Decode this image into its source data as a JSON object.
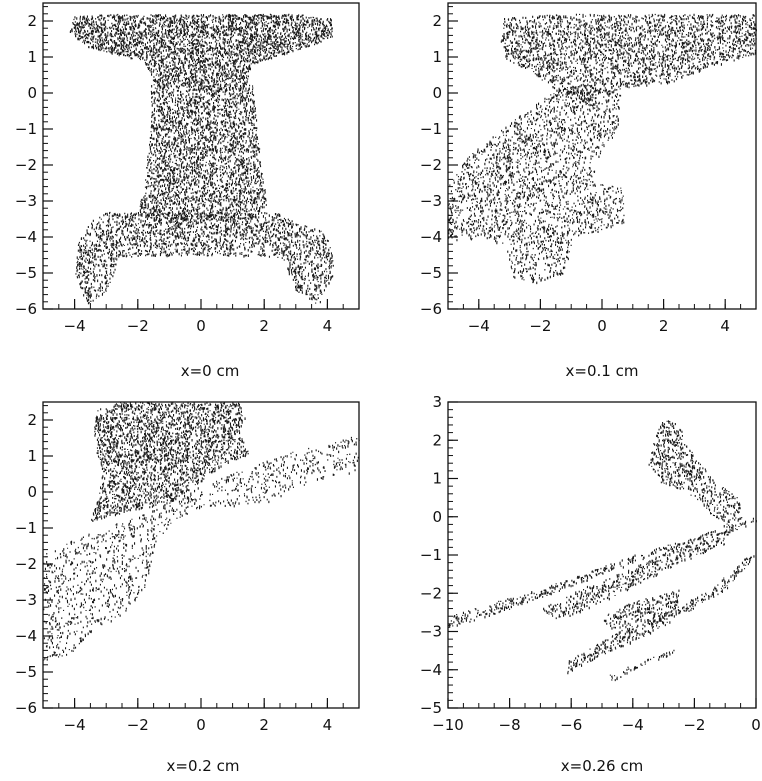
{
  "chart_data": [
    {
      "type": "scatter",
      "caption": "x=0 cm",
      "xlim": [
        -5,
        5
      ],
      "ylim": [
        -6,
        2.5
      ],
      "xticks": [
        -4,
        -2,
        0,
        2,
        4
      ],
      "yticks": [
        -6,
        -5,
        -4,
        -3,
        -2,
        -1,
        0,
        1,
        2
      ],
      "xtick_labels": [
        "−4",
        "−2",
        "0",
        "2",
        "4"
      ],
      "ytick_labels": [
        "−6",
        "−5",
        "−4",
        "−3",
        "−2",
        "−1",
        "0",
        "1",
        "2"
      ],
      "grid": false,
      "point_density": 2.6,
      "regions": [
        [
          [
            -4.2,
            1.75
          ],
          [
            -4.0,
            2.15
          ],
          [
            -3.0,
            2.2
          ],
          [
            0,
            2.2
          ],
          [
            3.0,
            2.2
          ],
          [
            4.1,
            2.1
          ],
          [
            4.2,
            1.6
          ],
          [
            3.4,
            1.3
          ],
          [
            2.4,
            1.05
          ],
          [
            1.6,
            0.8
          ],
          [
            1.5,
            0.3
          ],
          [
            -1.5,
            0.3
          ],
          [
            -1.8,
            0.9
          ],
          [
            -2.8,
            1.1
          ],
          [
            -3.6,
            1.3
          ]
        ],
        [
          [
            -1.6,
            0.3
          ],
          [
            1.6,
            0.3
          ],
          [
            1.8,
            -1.0
          ],
          [
            1.9,
            -2.0
          ],
          [
            2.1,
            -3.1
          ],
          [
            1.8,
            -3.3
          ],
          [
            1.5,
            -3.5
          ],
          [
            -1.5,
            -3.5
          ],
          [
            -2.0,
            -3.3
          ],
          [
            -1.8,
            -2.5
          ],
          [
            -1.6,
            -1.0
          ]
        ],
        [
          [
            -2.4,
            -3.3
          ],
          [
            2.4,
            -3.3
          ],
          [
            3.0,
            -3.6
          ],
          [
            3.8,
            -3.8
          ],
          [
            4.1,
            -4.2
          ],
          [
            4.2,
            -5.0
          ],
          [
            3.7,
            -5.9
          ],
          [
            3.0,
            -5.5
          ],
          [
            2.6,
            -4.6
          ],
          [
            2.0,
            -4.5
          ],
          [
            0,
            -4.5
          ],
          [
            -2.0,
            -4.5
          ],
          [
            -2.6,
            -4.6
          ],
          [
            -3.0,
            -5.5
          ],
          [
            -3.6,
            -5.9
          ],
          [
            -4.0,
            -5.0
          ],
          [
            -3.9,
            -4.2
          ],
          [
            -3.6,
            -3.6
          ],
          [
            -3.0,
            -3.3
          ]
        ]
      ]
    },
    {
      "type": "scatter",
      "caption": "x=0.1 cm",
      "xlim": [
        -5,
        5
      ],
      "ylim": [
        -6,
        2.5
      ],
      "xticks": [
        -4,
        -2,
        0,
        2,
        4
      ],
      "yticks": [
        -6,
        -5,
        -4,
        -3,
        -2,
        -1,
        0,
        1,
        2
      ],
      "xtick_labels": [
        "−4",
        "−2",
        "0",
        "2",
        "4"
      ],
      "ytick_labels": [
        "−6",
        "−5",
        "−4",
        "−3",
        "−2",
        "−1",
        "0",
        "1",
        "2"
      ],
      "grid": false,
      "point_density": 2.4,
      "regions": [
        [
          [
            -3.3,
            1.5
          ],
          [
            -3.2,
            2.1
          ],
          [
            -1.5,
            2.2
          ],
          [
            1.5,
            2.2
          ],
          [
            3.2,
            2.2
          ],
          [
            5.0,
            2.2
          ],
          [
            5.0,
            1.1
          ],
          [
            3.8,
            0.8
          ],
          [
            2.2,
            0.3
          ],
          [
            1.0,
            0.2
          ],
          [
            0,
            0.0
          ],
          [
            -0.5,
            -0.3
          ],
          [
            -1.5,
            0.1
          ],
          [
            -2.5,
            0.7
          ],
          [
            -3.1,
            0.9
          ]
        ],
        [
          [
            -5.0,
            -2.5
          ],
          [
            -4.3,
            -1.7
          ],
          [
            -3.4,
            -1.1
          ],
          [
            -2.5,
            -0.5
          ],
          [
            -1.5,
            0.1
          ],
          [
            -0.5,
            0.3
          ],
          [
            0.6,
            0.0
          ],
          [
            0.5,
            -1.0
          ],
          [
            -0.2,
            -1.9
          ],
          [
            -0.3,
            -2.5
          ],
          [
            0.7,
            -2.6
          ],
          [
            0.7,
            -3.6
          ],
          [
            0,
            -3.8
          ],
          [
            -0.9,
            -4.0
          ],
          [
            -1.2,
            -5.0
          ],
          [
            -2.2,
            -5.3
          ],
          [
            -2.9,
            -5.1
          ],
          [
            -3.1,
            -4.3
          ],
          [
            -3.8,
            -4.0
          ],
          [
            -5.0,
            -4.1
          ]
        ]
      ]
    },
    {
      "type": "scatter",
      "caption": "x=0.2 cm",
      "xlim": [
        -5,
        5
      ],
      "ylim": [
        -6,
        2.5
      ],
      "xticks": [
        -4,
        -2,
        0,
        2,
        4
      ],
      "yticks": [
        -6,
        -5,
        -4,
        -3,
        -2,
        -1,
        0,
        1,
        2
      ],
      "xtick_labels": [
        "−4",
        "−2",
        "0",
        "2",
        "4"
      ],
      "ytick_labels": [
        "−6",
        "−5",
        "−4",
        "−3",
        "−2",
        "−1",
        "0",
        "1",
        "2"
      ],
      "grid": false,
      "point_density": 2.3,
      "regions": [
        [
          [
            -3.4,
            1.7
          ],
          [
            -3.3,
            2.3
          ],
          [
            -2.6,
            2.5
          ],
          [
            1.2,
            2.5
          ],
          [
            1.4,
            2.1
          ],
          [
            1.2,
            1.6
          ],
          [
            1.6,
            1.1
          ],
          [
            0.8,
            0.8
          ],
          [
            -0.2,
            0.2
          ],
          [
            -1.0,
            -0.3
          ],
          [
            -2.2,
            -0.5
          ],
          [
            -3.5,
            -0.8
          ],
          [
            -3.3,
            -0.2
          ],
          [
            -3.1,
            0.6
          ],
          [
            -3.3,
            1.0
          ]
        ],
        [
          [
            -5.0,
            -1.7
          ],
          [
            -4.0,
            -1.3
          ],
          [
            -2.8,
            -0.9
          ],
          [
            -1.6,
            -0.5
          ],
          [
            -0.2,
            0.1
          ],
          [
            1.2,
            0.6
          ],
          [
            2.8,
            1.1
          ],
          [
            5.0,
            1.6
          ],
          [
            5.0,
            0.6
          ],
          [
            3.5,
            0.3
          ],
          [
            2.0,
            -0.3
          ],
          [
            1.0,
            -0.4
          ],
          [
            0,
            -0.4
          ],
          [
            -0.9,
            -0.8
          ],
          [
            -1.5,
            -1.5
          ],
          [
            -1.7,
            -2.5
          ],
          [
            -2.0,
            -3.0
          ],
          [
            -2.6,
            -3.5
          ],
          [
            -3.3,
            -3.7
          ],
          [
            -3.5,
            -4.1
          ],
          [
            -4.2,
            -4.5
          ],
          [
            -5.0,
            -4.7
          ]
        ]
      ]
    },
    {
      "type": "scatter",
      "caption": "x=0.26 cm",
      "xlim": [
        -10,
        0
      ],
      "ylim": [
        -5,
        3
      ],
      "xticks": [
        -10,
        -8,
        -6,
        -4,
        -2,
        0
      ],
      "yticks": [
        -5,
        -4,
        -3,
        -2,
        -1,
        0,
        1,
        2,
        3
      ],
      "xtick_labels": [
        "−10",
        "−8",
        "−6",
        "−4",
        "−2",
        "0"
      ],
      "ytick_labels": [
        "−5",
        "−4",
        "−3",
        "−2",
        "−1",
        "0",
        "1",
        "2",
        "3"
      ],
      "grid": false,
      "point_density": 1.5,
      "regions": [
        [
          [
            -3.3,
            2.1
          ],
          [
            -3.0,
            2.6
          ],
          [
            -2.5,
            2.4
          ],
          [
            -2.0,
            1.6
          ],
          [
            -1.4,
            1.0
          ],
          [
            -0.6,
            0.5
          ],
          [
            -0.4,
            0.0
          ],
          [
            -1.0,
            -0.3
          ],
          [
            -1.6,
            0.2
          ],
          [
            -2.3,
            0.7
          ],
          [
            -3.1,
            0.9
          ],
          [
            -3.5,
            1.4
          ]
        ],
        [
          [
            -10.0,
            -2.6
          ],
          [
            -8.0,
            -2.1
          ],
          [
            -6.0,
            -1.6
          ],
          [
            -4.0,
            -1.0
          ],
          [
            -2.0,
            -0.5
          ],
          [
            0,
            0.0
          ],
          [
            0,
            -0.2
          ],
          [
            -2.0,
            -0.6
          ],
          [
            -4.0,
            -1.2
          ],
          [
            -6.0,
            -1.8
          ],
          [
            -8.0,
            -2.4
          ],
          [
            -10.0,
            -2.9
          ]
        ],
        [
          [
            -7.0,
            -2.4
          ],
          [
            -5.5,
            -1.8
          ],
          [
            -4.0,
            -1.3
          ],
          [
            -2.2,
            -0.6
          ],
          [
            -0.8,
            -0.3
          ],
          [
            -1.0,
            -0.7
          ],
          [
            -2.5,
            -1.2
          ],
          [
            -4.2,
            -1.9
          ],
          [
            -5.5,
            -2.4
          ],
          [
            -6.4,
            -2.7
          ]
        ],
        [
          [
            -6.2,
            -3.8
          ],
          [
            -4.5,
            -3.0
          ],
          [
            -3.0,
            -2.5
          ],
          [
            -1.5,
            -1.9
          ],
          [
            -0.3,
            -1.0
          ],
          [
            0,
            -1.0
          ],
          [
            -1.0,
            -1.9
          ],
          [
            -2.5,
            -2.6
          ],
          [
            -3.6,
            -3.1
          ],
          [
            -5.0,
            -3.6
          ],
          [
            -6.2,
            -4.1
          ]
        ],
        [
          [
            -5.0,
            -2.6
          ],
          [
            -4.0,
            -2.2
          ],
          [
            -2.5,
            -1.9
          ],
          [
            -2.6,
            -2.5
          ],
          [
            -3.5,
            -2.8
          ],
          [
            -4.8,
            -2.9
          ]
        ],
        [
          [
            -4.8,
            -4.1
          ],
          [
            -3.8,
            -3.8
          ],
          [
            -2.6,
            -3.4
          ],
          [
            -2.8,
            -3.6
          ],
          [
            -3.8,
            -3.9
          ],
          [
            -4.7,
            -4.3
          ]
        ]
      ]
    }
  ]
}
